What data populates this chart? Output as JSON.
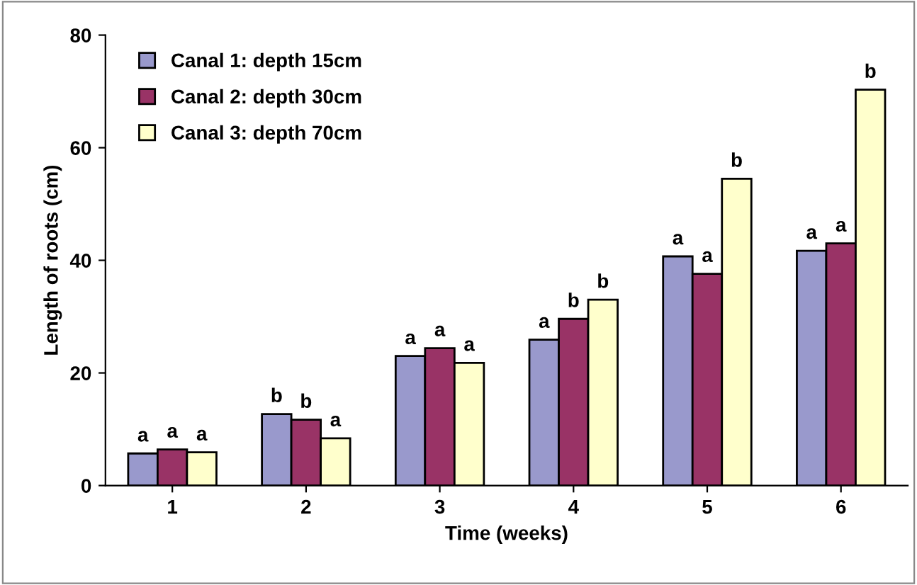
{
  "chart_data": {
    "type": "bar",
    "xlabel": "Time (weeks)",
    "ylabel": "Length of roots (cm)",
    "categories": [
      "1",
      "2",
      "3",
      "4",
      "5",
      "6"
    ],
    "series": [
      {
        "name": "Canal 1: depth 15cm",
        "color": "#9999cc",
        "values": [
          5.7,
          12.7,
          23.0,
          25.9,
          40.7,
          41.7
        ],
        "value_labels": [
          "a",
          "b",
          "a",
          "a",
          "a",
          "a"
        ]
      },
      {
        "name": "Canal 2: depth 30cm",
        "color": "#993366",
        "values": [
          6.4,
          11.7,
          24.4,
          29.6,
          37.6,
          43.0
        ],
        "value_labels": [
          "a",
          "b",
          "a",
          "b",
          "a",
          "a"
        ]
      },
      {
        "name": "Canal 3: depth 70cm",
        "color": "#ffffcc",
        "values": [
          5.9,
          8.4,
          21.8,
          33.0,
          54.5,
          70.3
        ],
        "value_labels": [
          "a",
          "a",
          "a",
          "b",
          "b",
          "b"
        ]
      }
    ],
    "ylim": [
      0,
      80
    ],
    "yticks": [
      0,
      20,
      40,
      60,
      80
    ],
    "grid": false,
    "legend": "top left"
  }
}
